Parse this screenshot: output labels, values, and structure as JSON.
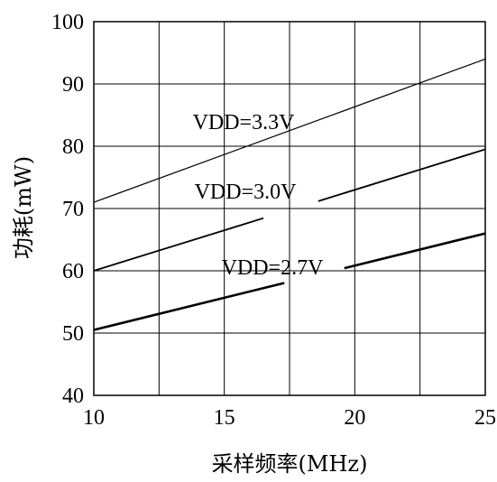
{
  "chart_data": {
    "type": "line",
    "xlabel": "采样频率(MHz)",
    "ylabel": "功耗(mW)",
    "xlim": [
      10,
      25
    ],
    "ylim": [
      40,
      100
    ],
    "xticks": [
      10,
      15,
      20,
      25
    ],
    "yticks": [
      40,
      50,
      60,
      70,
      80,
      90,
      100
    ],
    "grid": true,
    "series": [
      {
        "name": "VDD=3.3V",
        "x": [
          10,
          25
        ],
        "y": [
          71,
          94
        ]
      },
      {
        "name": "VDD=3.0V",
        "x": [
          10,
          25
        ],
        "y": [
          60,
          79.5
        ]
      },
      {
        "name": "VDD=2.7V",
        "x": [
          10,
          25
        ],
        "y": [
          50.5,
          66
        ]
      }
    ]
  }
}
